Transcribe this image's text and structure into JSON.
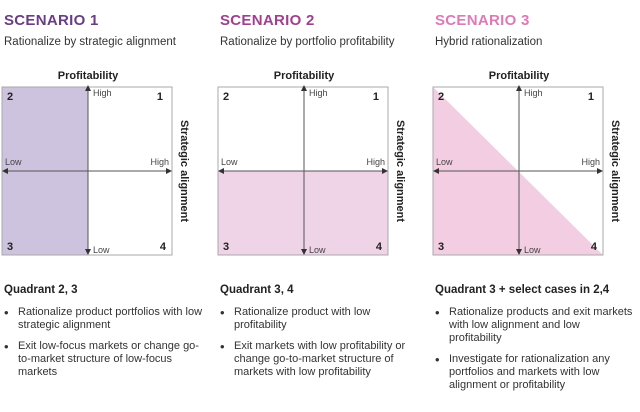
{
  "scenarios": [
    {
      "title": "SCENARIO 1",
      "subtitle": "Rationalize by strategic alignment",
      "title_color": "#6a3e85",
      "fill_color": "#cdc3de",
      "axis_top": "Profitability",
      "axis_right": "Strategic alignment",
      "label_high_y": "High",
      "label_low_y": "Low",
      "label_low_x": "Low",
      "label_high_x": "High",
      "quadrant_numbers": [
        "1",
        "2",
        "3",
        "4"
      ],
      "quadrant_heading": "Quadrant 2, 3",
      "bullets": [
        "Rationalize product portfolios with low strategic alignment",
        "Exit low-focus markets or change go-to-market structure of low-focus markets"
      ]
    },
    {
      "title": "SCENARIO 2",
      "subtitle": "Rationalize by portfolio profitability",
      "title_color": "#a2408f",
      "fill_color": "#efd3e7",
      "axis_top": "Profitability",
      "axis_right": "Strategic alignment",
      "label_high_y": "High",
      "label_low_y": "Low",
      "label_low_x": "Low",
      "label_high_x": "High",
      "quadrant_numbers": [
        "1",
        "2",
        "3",
        "4"
      ],
      "quadrant_heading": "Quadrant 3, 4",
      "bullets": [
        "Rationalize product with low profitability",
        "Exit markets with low profitability or change go-to-market structure of markets with low profitability"
      ]
    },
    {
      "title": "SCENARIO 3",
      "subtitle": "Hybrid rationalization",
      "title_color": "#de7ab6",
      "fill_color": "#f3cde2",
      "axis_top": "Profitability",
      "axis_right": "Strategic alignment",
      "label_high_y": "High",
      "label_low_y": "Low",
      "label_low_x": "Low",
      "label_high_x": "High",
      "quadrant_numbers": [
        "1",
        "2",
        "3",
        "4"
      ],
      "quadrant_heading": "Quadrant 3 + select cases in 2,4",
      "bullets": [
        "Rationalize products and exit markets with low alignment and low profitability",
        "Investigate for rationalization any portfolios and markets with low alignment or profitability"
      ]
    }
  ]
}
